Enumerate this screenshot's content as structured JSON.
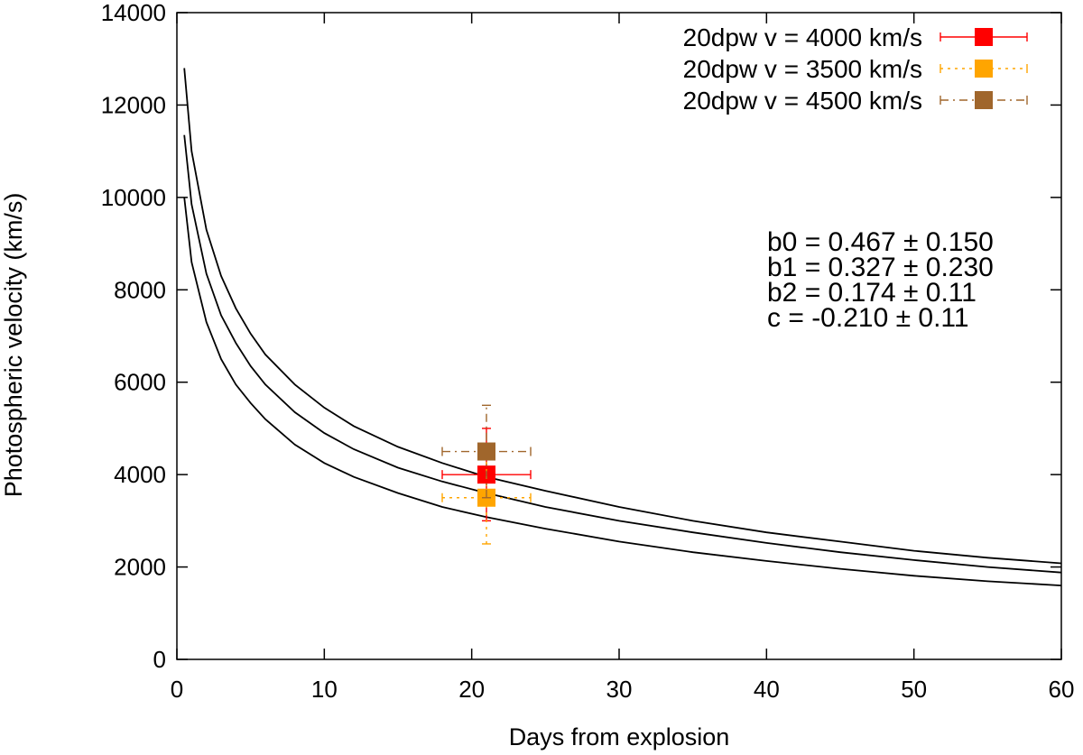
{
  "chart_data": {
    "type": "scatter",
    "xlabel": "Days from explosion",
    "ylabel": "Photospheric velocity (km/s)",
    "xlim": [
      0,
      60
    ],
    "ylim": [
      0,
      14000
    ],
    "xticks": [
      "0",
      "10",
      "20",
      "30",
      "40",
      "50",
      "60"
    ],
    "yticks": [
      "0",
      "2000",
      "4000",
      "6000",
      "8000",
      "10000",
      "12000",
      "14000"
    ],
    "grid": false,
    "legend_position": "top-right",
    "curves": [
      {
        "x": [
          0.5,
          1,
          2,
          3,
          4,
          5,
          6,
          8,
          10,
          12,
          15,
          18,
          21,
          25,
          30,
          35,
          40,
          45,
          50,
          55,
          60
        ],
        "y": [
          12800,
          11000,
          9300,
          8300,
          7600,
          7050,
          6600,
          5950,
          5450,
          5050,
          4600,
          4250,
          3950,
          3650,
          3300,
          3000,
          2750,
          2550,
          2350,
          2200,
          2080
        ]
      },
      {
        "x": [
          0.5,
          1,
          2,
          3,
          4,
          5,
          6,
          8,
          10,
          12,
          15,
          18,
          21,
          25,
          30,
          35,
          40,
          45,
          50,
          55,
          60
        ],
        "y": [
          11350,
          9850,
          8350,
          7450,
          6850,
          6350,
          5950,
          5350,
          4900,
          4550,
          4150,
          3850,
          3600,
          3300,
          3000,
          2750,
          2520,
          2320,
          2150,
          2000,
          1880
        ]
      },
      {
        "x": [
          0.5,
          1,
          2,
          3,
          4,
          5,
          6,
          8,
          10,
          12,
          15,
          18,
          21,
          25,
          30,
          35,
          40,
          45,
          50,
          55,
          60
        ],
        "y": [
          10000,
          8600,
          7300,
          6500,
          5950,
          5550,
          5200,
          4650,
          4250,
          3950,
          3600,
          3300,
          3080,
          2830,
          2550,
          2320,
          2130,
          1960,
          1810,
          1690,
          1600
        ]
      }
    ],
    "series": [
      {
        "name": "20dpw v = 4000 km/s",
        "color": "#ff0000",
        "line_style": "solid",
        "x": 21,
        "y": 4000,
        "xerr": [
          18,
          24
        ],
        "yerr": [
          3000,
          5000
        ]
      },
      {
        "name": "20dpw v = 3500 km/s",
        "color": "#ffa500",
        "line_style": "dotted",
        "x": 21,
        "y": 3500,
        "xerr": [
          18,
          24
        ],
        "yerr": [
          2500,
          4500
        ]
      },
      {
        "name": "20dpw v = 4500 km/s",
        "color": "#a0662c",
        "line_style": "dashdot",
        "x": 21,
        "y": 4500,
        "xerr": [
          18,
          24
        ],
        "yerr": [
          3500,
          5500
        ]
      }
    ],
    "annotations": [
      "b0 = 0.467 ± 0.150",
      "b1 = 0.327 ± 0.230",
      "b2 = 0.174 ± 0.11",
      "c = -0.210 ± 0.11"
    ]
  }
}
